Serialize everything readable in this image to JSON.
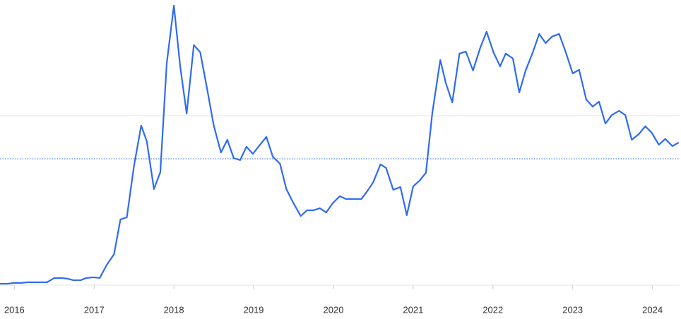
{
  "chart_data": {
    "type": "line",
    "x": [
      2015.82,
      2015.91,
      2016.0,
      2016.09,
      2016.16,
      2016.25,
      2016.34,
      2016.41,
      2016.5,
      2016.59,
      2016.67,
      2016.74,
      2016.83,
      2016.9,
      2016.99,
      2017.07,
      2017.16,
      2017.25,
      2017.33,
      2017.41,
      2017.5,
      2017.59,
      2017.66,
      2017.75,
      2017.83,
      2017.91,
      2018.0,
      2018.08,
      2018.16,
      2018.25,
      2018.33,
      2018.41,
      2018.5,
      2018.59,
      2018.67,
      2018.75,
      2018.83,
      2018.91,
      2018.99,
      2019.08,
      2019.16,
      2019.24,
      2019.33,
      2019.41,
      2019.49,
      2019.59,
      2019.67,
      2019.75,
      2019.83,
      2019.91,
      2019.99,
      2020.08,
      2020.16,
      2020.24,
      2020.35,
      2020.43,
      2020.5,
      2020.59,
      2020.66,
      2020.75,
      2020.84,
      2020.92,
      2021.0,
      2021.08,
      2021.16,
      2021.24,
      2021.34,
      2021.41,
      2021.49,
      2021.58,
      2021.66,
      2021.75,
      2021.84,
      2021.92,
      2022.01,
      2022.09,
      2022.16,
      2022.25,
      2022.33,
      2022.41,
      2022.5,
      2022.58,
      2022.66,
      2022.74,
      2022.83,
      2022.91,
      2023.0,
      2023.08,
      2023.17,
      2023.25,
      2023.33,
      2023.41,
      2023.49,
      2023.58,
      2023.66,
      2023.74,
      2023.83,
      2023.91,
      2023.99,
      2024.08,
      2024.16,
      2024.25,
      2024.33
    ],
    "series": [
      {
        "color": "#2f6bf0",
        "values": [
          0.8,
          0.8,
          1.3,
          1.3,
          1.7,
          1.7,
          1.7,
          1.7,
          4.2,
          4.2,
          3.8,
          2.9,
          2.9,
          4.2,
          4.6,
          4.2,
          12.1,
          18.3,
          38.8,
          40.0,
          70.4,
          94.2,
          85.0,
          56.7,
          66.7,
          130.8,
          165.0,
          128.8,
          101.3,
          141.7,
          137.5,
          117.5,
          94.2,
          78.3,
          85.8,
          75.0,
          73.8,
          81.7,
          77.5,
          82.9,
          87.5,
          75.8,
          71.7,
          56.7,
          49.2,
          40.8,
          44.2,
          44.2,
          45.4,
          42.9,
          48.3,
          52.5,
          50.8,
          50.8,
          50.8,
          55.8,
          60.8,
          71.3,
          69.2,
          56.3,
          57.9,
          41.3,
          58.3,
          61.7,
          66.3,
          101.7,
          132.9,
          119.2,
          107.9,
          136.7,
          137.9,
          126.7,
          140.0,
          149.6,
          137.1,
          129.2,
          136.7,
          133.8,
          113.8,
          126.7,
          137.5,
          148.3,
          142.9,
          146.7,
          148.3,
          137.9,
          125.0,
          127.1,
          109.6,
          105.4,
          108.3,
          95.4,
          100.4,
          102.9,
          100.4,
          85.8,
          89.2,
          93.8,
          90.0,
          82.9,
          86.3,
          82.1,
          84.2
        ]
      }
    ],
    "xlim": [
      2015.82,
      2024.34
    ],
    "xticks": [
      2016,
      2017,
      2018,
      2019,
      2020,
      2021,
      2022,
      2023,
      2024
    ],
    "ylim": [
      -5,
      168
    ],
    "yticks": [
      0,
      100
    ],
    "grid": true,
    "reference_line": 74.6
  }
}
